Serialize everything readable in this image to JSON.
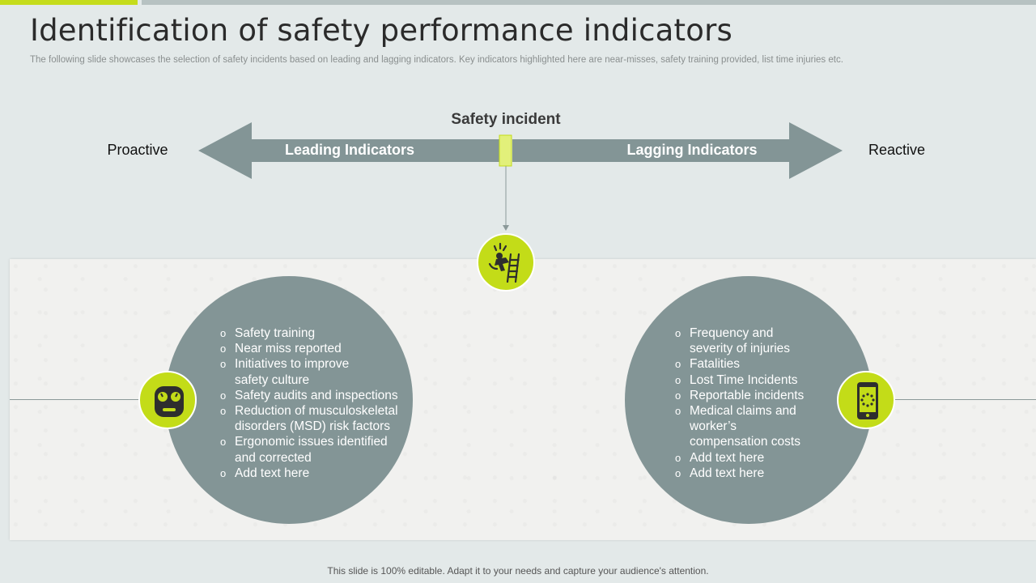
{
  "header": {
    "title": "Identification of safety performance indicators",
    "subtitle": "The following  slide showcases the selection of safety incidents based on leading and lagging indicators. Key indicators highlighted  here are near-misses,  safety training provided,  list time injuries etc."
  },
  "diagram": {
    "center_label": "Safety incident",
    "left_end_label": "Proactive",
    "right_end_label": "Reactive",
    "left_arrow_label": "Leading Indicators",
    "right_arrow_label": "Lagging Indicators",
    "center_icon": "worker-fall-ladder-icon",
    "left_icon": "gauge-face-icon",
    "right_icon": "mobile-phone-icon",
    "leading_items": [
      "Safety training",
      "Near miss reported",
      "Initiatives to improve\nsafety culture",
      "Safety audits and inspections",
      "Reduction of musculoskeletal\ndisorders (MSD) risk factors",
      "Ergonomic issues identified\nand corrected",
      "Add text here"
    ],
    "lagging_items": [
      "Frequency and\nseverity of injuries",
      "Fatalities",
      "Lost Time Incidents",
      "Reportable incidents",
      "Medical claims and\nworker’s\ncompensation costs",
      "Add text here",
      "Add text here"
    ]
  },
  "colors": {
    "accent": "#c3dc18",
    "arrow": "#839596",
    "background": "#e3e9e9"
  },
  "footer": {
    "note": "This slide is 100% editable. Adapt it to your needs and capture your audience's attention."
  }
}
